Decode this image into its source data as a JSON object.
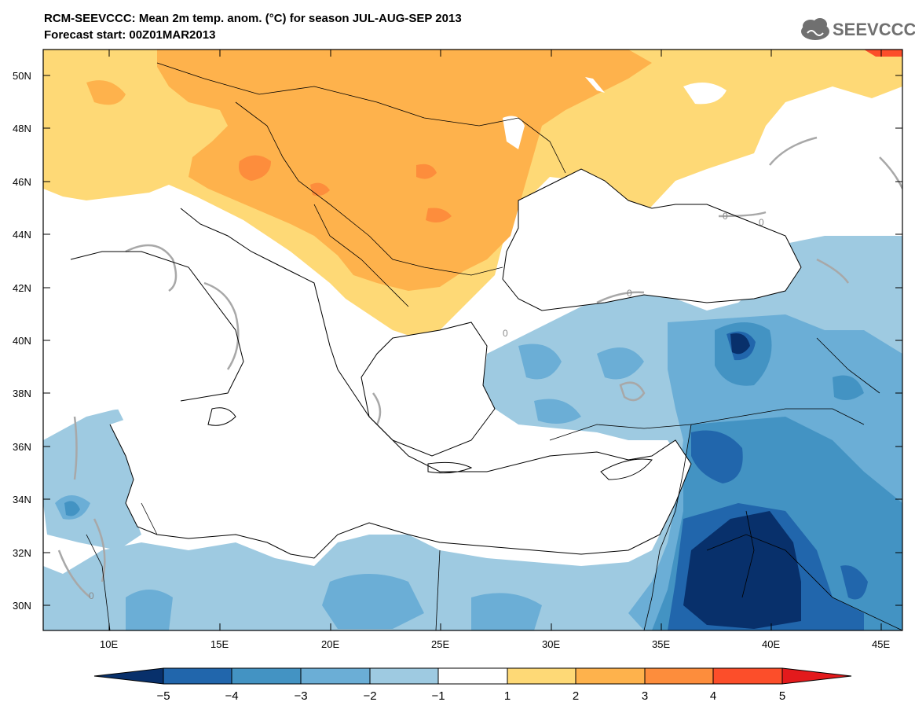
{
  "header": {
    "title": "RCM-SEEVCCC: Mean 2m temp. anom. (°C) for season JUL-AUG-SEP 2013",
    "subtitle": "Forecast start: 00Z01MAR2013",
    "logo_text": "SEEVCCC"
  },
  "map": {
    "lat_labels": [
      "50N",
      "48N",
      "46N",
      "44N",
      "42N",
      "40N",
      "38N",
      "36N",
      "34N",
      "32N",
      "30N"
    ],
    "lon_labels": [
      "10E",
      "15E",
      "20E",
      "25E",
      "30E",
      "35E",
      "40E",
      "45E"
    ],
    "contour_label": "0",
    "colors": {
      "background": "#ffffff",
      "frame": "#000000",
      "contour": "#a8a8a8",
      "coast": "#000000"
    }
  },
  "colorbar": {
    "tick_labels": [
      "−5",
      "−4",
      "−3",
      "−2",
      "−1",
      "1",
      "2",
      "3",
      "4",
      "5"
    ],
    "bins": [
      {
        "range": "< -5",
        "color": "#08306b"
      },
      {
        "range": "-5 to -4",
        "color": "#2166ac"
      },
      {
        "range": "-4 to -3",
        "color": "#4393c3"
      },
      {
        "range": "-3 to -2",
        "color": "#6baed6"
      },
      {
        "range": "-2 to -1",
        "color": "#9ecae1"
      },
      {
        "range": "-1 to 1",
        "color": "#ffffff"
      },
      {
        "range": "1 to 2",
        "color": "#fed976"
      },
      {
        "range": "2 to 3",
        "color": "#feb24c"
      },
      {
        "range": "3 to 4",
        "color": "#fd8d3c"
      },
      {
        "range": "4 to 5",
        "color": "#fc4e2a"
      },
      {
        "range": "> 5",
        "color": "#e31a1c"
      }
    ]
  }
}
